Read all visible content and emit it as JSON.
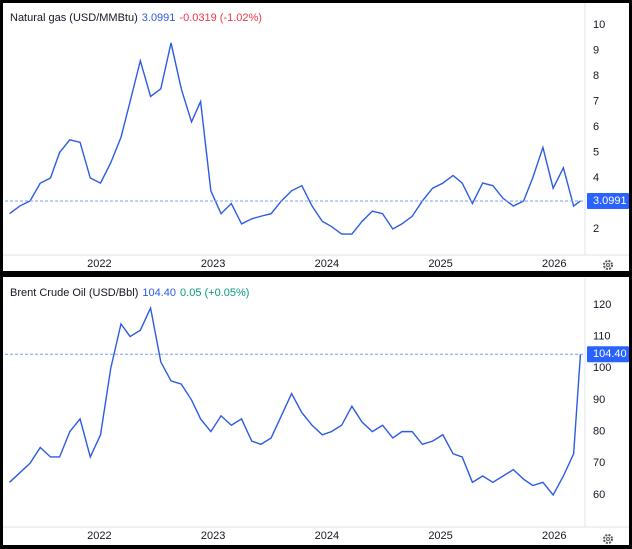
{
  "chart_data": [
    {
      "type": "line",
      "title": "Natural gas (USD/MMBtu)",
      "price": "3.0991",
      "change": "-0.0319 (-1.02%)",
      "change_color": "#f23645",
      "color": "#2d5be3",
      "x": [
        2021.21,
        2021.3,
        2021.39,
        2021.48,
        2021.57,
        2021.65,
        2021.74,
        2021.83,
        2021.92,
        2022.01,
        2022.1,
        2022.19,
        2022.27,
        2022.36,
        2022.45,
        2022.54,
        2022.63,
        2022.72,
        2022.81,
        2022.89,
        2022.98,
        2023.07,
        2023.16,
        2023.25,
        2023.34,
        2023.42,
        2023.51,
        2023.6,
        2023.69,
        2023.78,
        2023.87,
        2023.96,
        2024.04,
        2024.13,
        2024.22,
        2024.31,
        2024.4,
        2024.49,
        2024.58,
        2024.66,
        2024.75,
        2024.84,
        2024.93,
        2025.02,
        2025.11,
        2025.19,
        2025.28,
        2025.37,
        2025.46,
        2025.55,
        2025.64,
        2025.73,
        2025.81,
        2025.9,
        2025.99,
        2026.08,
        2026.17,
        2026.23
      ],
      "values": [
        2.6,
        2.9,
        3.1,
        3.8,
        4.0,
        5.0,
        5.5,
        5.4,
        4.0,
        3.8,
        4.6,
        5.6,
        7.0,
        8.6,
        7.2,
        7.5,
        9.3,
        7.5,
        6.2,
        7.0,
        3.5,
        2.6,
        3.0,
        2.2,
        2.4,
        2.5,
        2.6,
        3.1,
        3.5,
        3.7,
        2.9,
        2.3,
        2.1,
        1.8,
        1.8,
        2.3,
        2.7,
        2.6,
        2.0,
        2.2,
        2.5,
        3.1,
        3.6,
        3.8,
        4.1,
        3.8,
        3.0,
        3.8,
        3.7,
        3.2,
        2.9,
        3.1,
        4.0,
        5.2,
        3.6,
        4.4,
        2.9,
        3.0991
      ],
      "xlim": [
        2021.17,
        2026.27
      ],
      "xticks": [
        2022,
        2023,
        2024,
        2025,
        2026
      ],
      "ylim": [
        0.98,
        10.67
      ],
      "yticks": [
        2,
        3,
        4,
        5,
        6,
        7,
        8,
        9,
        10
      ]
    },
    {
      "type": "line",
      "title": "Brent Crude Oil (USD/Bbl)",
      "price": "104.40",
      "change": "0.05 (+0.05%)",
      "change_color": "#089981",
      "color": "#2d5be3",
      "x": [
        2021.21,
        2021.3,
        2021.39,
        2021.48,
        2021.57,
        2021.65,
        2021.74,
        2021.83,
        2021.92,
        2022.01,
        2022.1,
        2022.19,
        2022.27,
        2022.36,
        2022.45,
        2022.54,
        2022.63,
        2022.72,
        2022.81,
        2022.89,
        2022.98,
        2023.07,
        2023.16,
        2023.25,
        2023.34,
        2023.42,
        2023.51,
        2023.6,
        2023.69,
        2023.78,
        2023.87,
        2023.96,
        2024.04,
        2024.13,
        2024.22,
        2024.31,
        2024.4,
        2024.49,
        2024.58,
        2024.66,
        2024.75,
        2024.84,
        2024.93,
        2025.02,
        2025.11,
        2025.19,
        2025.28,
        2025.37,
        2025.46,
        2025.55,
        2025.64,
        2025.73,
        2025.81,
        2025.9,
        2025.99,
        2026.08,
        2026.17,
        2026.23
      ],
      "values": [
        64,
        67,
        70,
        75,
        72,
        72,
        80,
        84,
        72,
        79,
        100,
        114,
        110,
        112,
        119,
        102,
        96,
        95,
        90,
        84,
        80,
        85,
        82,
        84,
        77,
        76,
        78,
        85,
        92,
        86,
        82,
        79,
        80,
        82,
        88,
        83,
        80,
        82,
        78,
        80,
        80,
        76,
        77,
        79,
        73,
        72,
        64,
        66,
        64,
        66,
        68,
        65,
        63,
        64,
        60,
        66,
        73,
        104.4
      ],
      "xlim": [
        2021.17,
        2026.27
      ],
      "xticks": [
        2022,
        2023,
        2024,
        2025,
        2026
      ],
      "ylim": [
        49.9,
        126.9
      ],
      "yticks": [
        60,
        70,
        80,
        90,
        100,
        110,
        120
      ]
    }
  ]
}
